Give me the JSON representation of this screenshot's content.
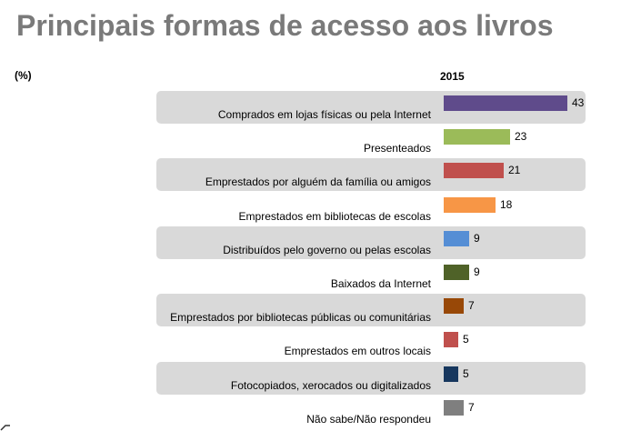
{
  "header": {
    "title": "Principais formas de acesso aos livros",
    "unit": "(%)",
    "year": "2015"
  },
  "chart_data": {
    "type": "bar",
    "orientation": "horizontal",
    "title": "Principais formas de acesso aos livros",
    "unit": "(%)",
    "series": [
      {
        "name": "2015",
        "values": [
          43,
          23,
          21,
          18,
          9,
          9,
          7,
          5,
          5,
          7
        ]
      }
    ],
    "categories": [
      "Comprados em lojas físicas ou pela Internet",
      "Presenteados",
      "Emprestados por alguém da família ou amigos",
      "Emprestados em bibliotecas de escolas",
      "Distribuídos pelo governo ou pelas escolas",
      "Baixados da Internet",
      "Emprestados por bibliotecas públicas ou comunitárias",
      "Emprestados em outros locais",
      "Fotocopiados, xerocados ou digitalizados",
      "Não sabe/Não respondeu"
    ],
    "colors": [
      "#5f4b8b",
      "#9bbb59",
      "#c0504d",
      "#f79646",
      "#558ed5",
      "#4f6228",
      "#984807",
      "#c0504d",
      "#17375e",
      "#7f7f7f"
    ],
    "shaded_rows": [
      true,
      false,
      true,
      false,
      true,
      false,
      true,
      false,
      true,
      false
    ],
    "xlim": [
      0,
      43
    ]
  }
}
